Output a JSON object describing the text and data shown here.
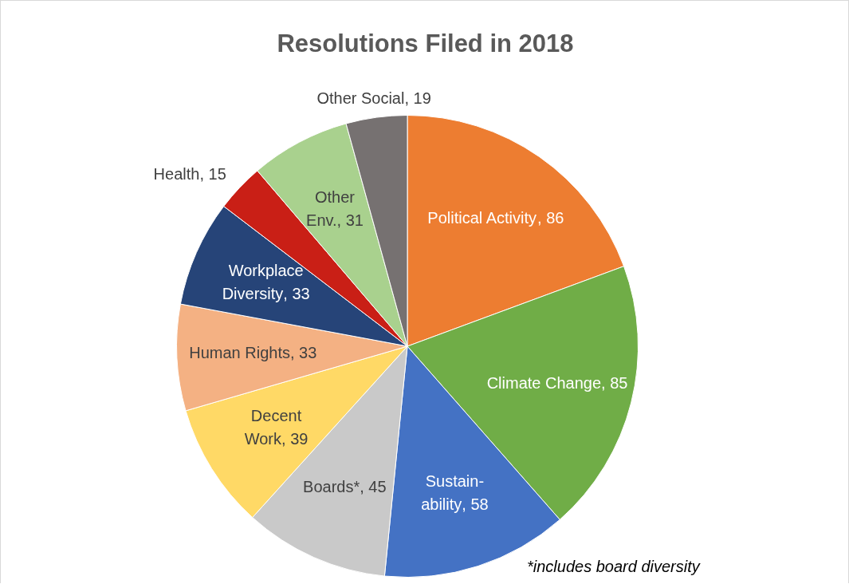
{
  "chart_data": {
    "type": "pie",
    "title": "Resolutions Filed in 2018",
    "categories": [
      "Political Activity",
      "Climate Change",
      "Sustain-\nability",
      "Boards*",
      "Decent\nWork",
      "Human Rights",
      "Workplace\nDiversity",
      "Health",
      "Other\nEnv.",
      "Other Social"
    ],
    "values": [
      86,
      85,
      58,
      45,
      39,
      33,
      33,
      15,
      31,
      19
    ],
    "colors": [
      "#ed7d31",
      "#70ad47",
      "#4472c4",
      "#c9c9c9",
      "#ffd966",
      "#f4b183",
      "#264478",
      "#c91f16",
      "#a9d18e",
      "#767171"
    ],
    "value_labels": [
      ", 86",
      ", 85",
      ", 58",
      ", 45",
      ", 39",
      ", 33",
      ", 33",
      ", 15",
      ", 31",
      ", 19"
    ],
    "legend": false,
    "annotations": [
      "*includes board diversity"
    ]
  }
}
